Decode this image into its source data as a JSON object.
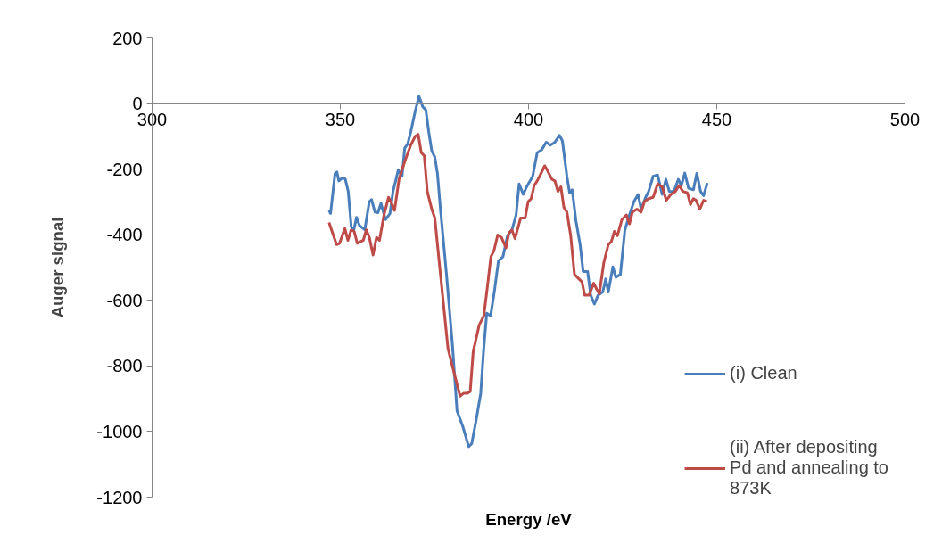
{
  "chart_data": {
    "type": "line",
    "xlabel": "Energy /eV",
    "ylabel": "Auger signal",
    "xlim": [
      300,
      500
    ],
    "xticks": [
      300,
      350,
      400,
      450,
      500
    ],
    "ylim": [
      -1200,
      200
    ],
    "yticks": [
      -1200,
      -1000,
      -800,
      -600,
      -400,
      -200,
      0,
      200
    ],
    "grid": false,
    "legend": "bottom right",
    "marker": "none",
    "line_style": "solid",
    "series": [
      {
        "name": "(i) Clean",
        "color": "#4a7ebb",
        "x": [
          347.0,
          347.4,
          348.6,
          349.1,
          349.6,
          350.5,
          351.3,
          352.1,
          352.9,
          353.6,
          354.3,
          355.1,
          356.5,
          357.7,
          358.3,
          359.2,
          360.0,
          360.8,
          362.0,
          363.2,
          364.0,
          364.8,
          365.4,
          366.4,
          367.1,
          367.9,
          368.7,
          369.9,
          370.9,
          371.9,
          372.7,
          373.5,
          374.3,
          375.1,
          375.8,
          376.6,
          378.2,
          379.8,
          381.0,
          382.5,
          384.1,
          384.9,
          386.1,
          387.3,
          388.1,
          388.9,
          389.9,
          390.9,
          392.0,
          393.2,
          394.4,
          395.6,
          396.7,
          397.5,
          398.6,
          399.5,
          401.1,
          402.3,
          403.5,
          404.7,
          405.8,
          407.0,
          408.2,
          409.0,
          410.2,
          410.9,
          411.6,
          412.6,
          413.7,
          414.5,
          415.7,
          416.5,
          417.5,
          418.5,
          419.7,
          420.5,
          421.2,
          422.4,
          423.2,
          424.4,
          425.6,
          426.8,
          428.0,
          429.1,
          429.9,
          431.1,
          431.9,
          433.1,
          434.3,
          435.5,
          436.5,
          437.4,
          438.6,
          439.8,
          440.6,
          441.5,
          442.5,
          443.8,
          444.7,
          445.7,
          446.5,
          447.5
        ],
        "values": [
          -326,
          -335,
          -213,
          -209,
          -236,
          -227,
          -230,
          -268,
          -376,
          -385,
          -347,
          -372,
          -385,
          -299,
          -293,
          -331,
          -333,
          -304,
          -354,
          -335,
          -268,
          -231,
          -202,
          -222,
          -136,
          -123,
          -87,
          -23,
          22,
          -10,
          -19,
          -87,
          -145,
          -163,
          -213,
          -322,
          -521,
          -738,
          -937,
          -983,
          -1046,
          -1037,
          -964,
          -883,
          -747,
          -639,
          -648,
          -575,
          -480,
          -467,
          -403,
          -385,
          -340,
          -245,
          -277,
          -254,
          -222,
          -150,
          -141,
          -118,
          -127,
          -118,
          -97,
          -114,
          -222,
          -272,
          -263,
          -358,
          -430,
          -512,
          -512,
          -584,
          -611,
          -584,
          -575,
          -535,
          -575,
          -498,
          -530,
          -521,
          -385,
          -340,
          -299,
          -277,
          -322,
          -286,
          -268,
          -222,
          -218,
          -277,
          -231,
          -268,
          -268,
          -231,
          -250,
          -212,
          -258,
          -263,
          -213,
          -268,
          -281,
          -242
        ]
      },
      {
        "name": "(ii) After depositing Pd and annealing to 873K",
        "color": "#be4b48",
        "x": [
          347.0,
          349.0,
          349.8,
          351.2,
          352.0,
          352.9,
          353.7,
          354.5,
          356.1,
          356.9,
          357.7,
          358.7,
          359.6,
          360.4,
          361.6,
          362.8,
          363.6,
          364.4,
          365.6,
          367.1,
          368.7,
          369.9,
          370.7,
          371.5,
          372.3,
          373.1,
          374.3,
          375.1,
          376.6,
          378.6,
          380.2,
          381.8,
          382.8,
          383.8,
          384.5,
          385.3,
          386.9,
          388.1,
          388.9,
          390.0,
          390.8,
          391.8,
          392.8,
          394.0,
          394.8,
          395.6,
          396.4,
          397.9,
          399.1,
          399.9,
          400.7,
          401.5,
          402.3,
          403.1,
          404.3,
          405.0,
          406.2,
          407.0,
          407.8,
          408.6,
          409.4,
          410.2,
          411.2,
          412.2,
          413.4,
          414.2,
          414.9,
          416.1,
          417.3,
          418.1,
          418.8,
          420.0,
          421.2,
          422.0,
          422.8,
          423.6,
          424.8,
          426.0,
          426.8,
          427.6,
          428.8,
          429.9,
          430.8,
          431.9,
          433.1,
          434.3,
          435.5,
          436.6,
          437.8,
          439.0,
          440.0,
          441.0,
          442.2,
          443.0,
          443.8,
          444.5,
          445.5,
          446.5,
          447.4
        ],
        "values": [
          -363,
          -430,
          -426,
          -381,
          -417,
          -385,
          -390,
          -426,
          -417,
          -385,
          -408,
          -462,
          -408,
          -417,
          -340,
          -286,
          -304,
          -326,
          -231,
          -177,
          -127,
          -100,
          -94,
          -150,
          -159,
          -268,
          -322,
          -349,
          -521,
          -747,
          -820,
          -892,
          -883,
          -883,
          -878,
          -756,
          -675,
          -648,
          -575,
          -467,
          -449,
          -401,
          -408,
          -440,
          -394,
          -385,
          -412,
          -349,
          -349,
          -299,
          -290,
          -250,
          -236,
          -218,
          -190,
          -204,
          -231,
          -236,
          -268,
          -254,
          -317,
          -331,
          -403,
          -521,
          -535,
          -544,
          -584,
          -584,
          -548,
          -566,
          -580,
          -485,
          -430,
          -421,
          -390,
          -403,
          -354,
          -340,
          -367,
          -331,
          -322,
          -331,
          -299,
          -290,
          -286,
          -245,
          -254,
          -295,
          -277,
          -268,
          -250,
          -268,
          -272,
          -308,
          -290,
          -295,
          -322,
          -295,
          -299
        ]
      }
    ]
  }
}
